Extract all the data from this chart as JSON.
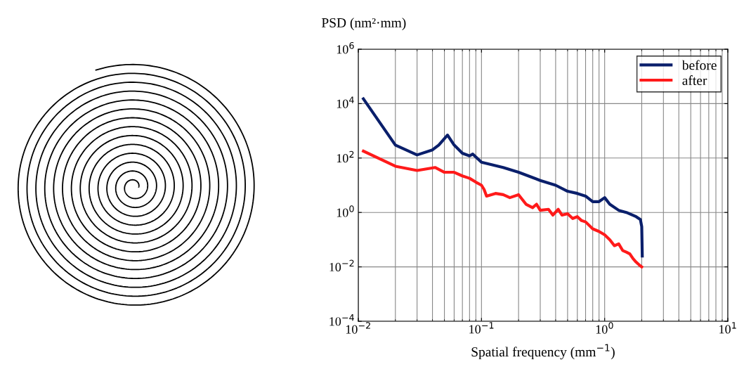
{
  "chart_data": {
    "type": "line",
    "ylabel": "PSD (nm²·mm)",
    "xlabel": "Spatial frequency (mm$^{−1}$)",
    "log": "xy",
    "grid": true,
    "legend": "top right",
    "line_style": "solid",
    "marker": "none",
    "xlim": [
      0.01,
      10
    ],
    "xticks": [
      {
        "value": 0.01,
        "label": "10$^{−2}$"
      },
      {
        "value": 0.1,
        "label": "10$^{−1}$"
      },
      {
        "value": 1,
        "label": "10$^{0}$"
      },
      {
        "value": 10,
        "label": "10$^{1}$"
      }
    ],
    "ylim": [
      0.0001,
      1000000
    ],
    "yticks": [
      {
        "value": 0.0001,
        "label": "10$^{−4}$"
      },
      {
        "value": 0.01,
        "label": "10$^{−2}$"
      },
      {
        "value": 1,
        "label": "10$^{0}$"
      },
      {
        "value": 100,
        "label": "10$^{2}$"
      },
      {
        "value": 10000,
        "label": "10$^{4}$"
      },
      {
        "value": 1000000,
        "label": "10$^{6}$"
      }
    ],
    "series": [
      {
        "name": "before",
        "color": "#0a1f6b",
        "x": [
          0.011,
          0.02,
          0.03,
          0.04,
          0.045,
          0.053,
          0.06,
          0.07,
          0.08,
          0.085,
          0.1,
          0.15,
          0.2,
          0.3,
          0.4,
          0.5,
          0.6,
          0.7,
          0.8,
          0.9,
          1.0,
          1.1,
          1.3,
          1.5,
          1.8,
          1.95,
          2.0,
          2.02
        ],
        "values": [
          15000,
          300,
          130,
          200,
          300,
          700,
          300,
          150,
          120,
          140,
          70,
          45,
          30,
          15,
          10,
          6,
          5,
          4,
          2.5,
          2.5,
          3.5,
          2,
          1.2,
          1.0,
          0.7,
          0.55,
          0.3,
          0.025
        ]
      },
      {
        "name": "after",
        "color": "#ff1a1a",
        "x": [
          0.011,
          0.02,
          0.03,
          0.042,
          0.05,
          0.06,
          0.07,
          0.08,
          0.09,
          0.1,
          0.105,
          0.11,
          0.13,
          0.15,
          0.17,
          0.2,
          0.23,
          0.26,
          0.28,
          0.3,
          0.35,
          0.38,
          0.42,
          0.45,
          0.5,
          0.55,
          0.6,
          0.65,
          0.7,
          0.8,
          0.9,
          1.0,
          1.1,
          1.2,
          1.3,
          1.4,
          1.5,
          1.6,
          1.7,
          1.8,
          1.9,
          2.0
        ],
        "values": [
          180,
          50,
          35,
          45,
          30,
          30,
          22,
          18,
          13,
          10,
          7,
          4,
          5,
          4.5,
          3.5,
          4.5,
          2,
          1.5,
          2.0,
          1.2,
          1.3,
          0.8,
          1.3,
          0.8,
          0.9,
          0.6,
          0.7,
          0.5,
          0.45,
          0.25,
          0.2,
          0.15,
          0.1,
          0.06,
          0.07,
          0.04,
          0.035,
          0.03,
          0.02,
          0.015,
          0.012,
          0.01
        ]
      }
    ]
  }
}
